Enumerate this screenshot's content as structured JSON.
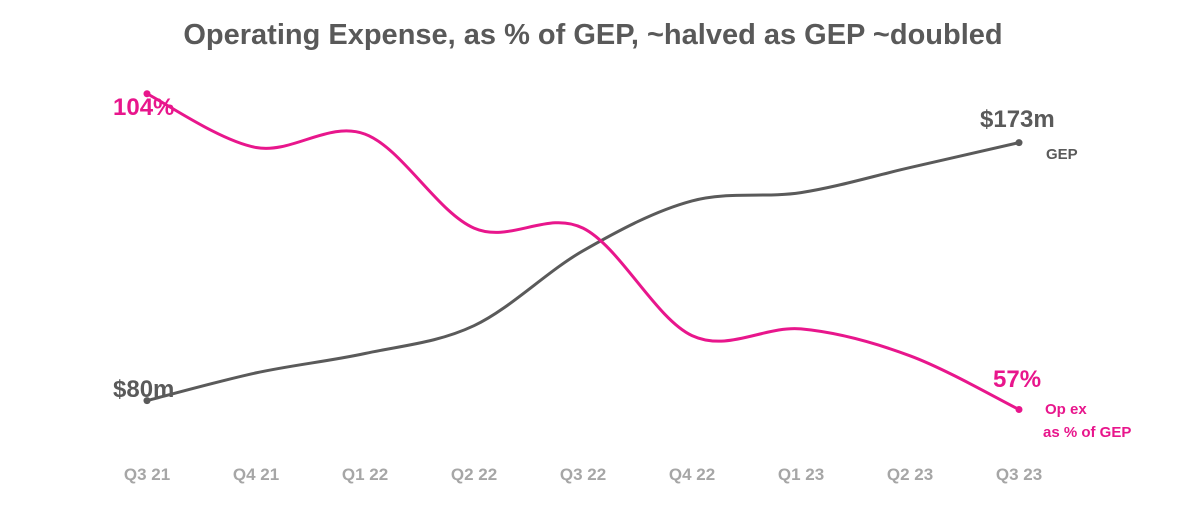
{
  "colors": {
    "title": "#595959",
    "tick": "#a6a6a6",
    "gep_series": "#5a5a5a",
    "opex_series": "#e8168c",
    "background": "#ffffff"
  },
  "chart_data": {
    "type": "line",
    "title": "Operating Expense, as % of GEP, ~halved as GEP ~doubled",
    "xlabel": "",
    "ylabel": "",
    "grid": false,
    "categories": [
      "Q3 21",
      "Q4 21",
      "Q1 22",
      "Q2 22",
      "Q3 22",
      "Q4 22",
      "Q1 23",
      "Q2 23",
      "Q3 23"
    ],
    "series": [
      {
        "name": "GEP",
        "unit": "$m",
        "values": [
          80,
          90,
          97,
          107,
          134,
          152,
          155,
          164,
          173
        ],
        "ylim": [
          55,
          210
        ],
        "start_label": "$80m",
        "end_label": "$173m",
        "legend_label": "GEP"
      },
      {
        "name": "Op ex as % of GEP",
        "unit": "%",
        "values": [
          104,
          96,
          98,
          84,
          84,
          68,
          69,
          65,
          57
        ],
        "ylim": [
          48,
          112
        ],
        "start_label": "104%",
        "end_label": "57%",
        "legend_label_line1": "Op ex",
        "legend_label_line2": "as % of GEP"
      }
    ]
  }
}
